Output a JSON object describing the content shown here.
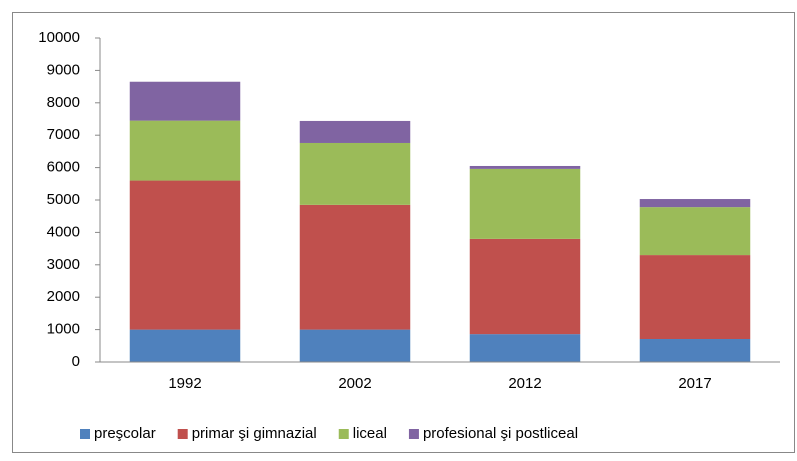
{
  "chart_data": {
    "type": "stacked_bar",
    "categories": [
      "1992",
      "2002",
      "2012",
      "2017"
    ],
    "series": [
      {
        "name": "preşcolar",
        "color": "#4f81bd",
        "values": [
          1000,
          1000,
          860,
          710
        ]
      },
      {
        "name": "primar şi gimnazial",
        "color": "#c0504d",
        "values": [
          4600,
          3850,
          2940,
          2590
        ]
      },
      {
        "name": "liceal",
        "color": "#9bbb59",
        "values": [
          1850,
          1910,
          2160,
          1480
        ]
      },
      {
        "name": "profesional şi postliceal",
        "color": "#8064a2",
        "values": [
          1200,
          680,
          90,
          250
        ]
      }
    ],
    "ylim": [
      0,
      10000
    ],
    "yticks": [
      0,
      1000,
      2000,
      3000,
      4000,
      5000,
      6000,
      7000,
      8000,
      9000,
      10000
    ],
    "grid": false,
    "legend": "bottom"
  }
}
